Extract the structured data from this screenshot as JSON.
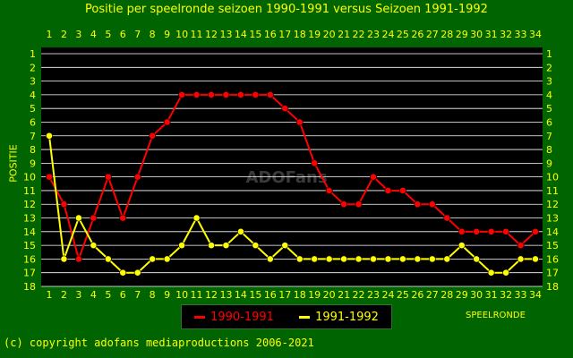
{
  "title": "Positie per speelronde seizoen 1990-1991 versus Seizoen 1991-1992",
  "footer": "(c) copyright adofans mediaproductions 2006-2021",
  "watermark": "ADOFans",
  "colors": {
    "background": "#006400",
    "plot_background": "#000000",
    "text": "#ffff00",
    "grid": "#ffffff",
    "series_1990": "#ff0000",
    "series_1991": "#ffff00"
  },
  "chart_data": {
    "type": "line",
    "title": "Positie per speelronde seizoen 1990-1991 versus Seizoen 1991-1992",
    "xlabel": "SPEELRONDE",
    "ylabel": "POSITIE",
    "x": [
      1,
      2,
      3,
      4,
      5,
      6,
      7,
      8,
      9,
      10,
      11,
      12,
      13,
      14,
      15,
      16,
      17,
      18,
      19,
      20,
      21,
      22,
      23,
      24,
      25,
      26,
      27,
      28,
      29,
      30,
      31,
      32,
      33,
      34
    ],
    "xlim": [
      1,
      34
    ],
    "ylim": [
      1,
      18
    ],
    "y_inverted": true,
    "yticks": [
      1,
      2,
      3,
      4,
      5,
      6,
      7,
      8,
      9,
      10,
      11,
      12,
      13,
      14,
      15,
      16,
      17,
      18
    ],
    "grid": true,
    "legend_position": "bottom-center",
    "series": [
      {
        "name": "1990-1991",
        "color": "#ff0000",
        "values": [
          10,
          12,
          16,
          13,
          10,
          13,
          10,
          7,
          6,
          4,
          4,
          4,
          4,
          4,
          4,
          4,
          5,
          6,
          9,
          11,
          12,
          12,
          10,
          11,
          11,
          12,
          12,
          13,
          14,
          14,
          14,
          14,
          15,
          14
        ]
      },
      {
        "name": "1991-1992",
        "color": "#ffff00",
        "values": [
          7,
          16,
          13,
          15,
          16,
          17,
          17,
          16,
          16,
          15,
          13,
          15,
          15,
          14,
          15,
          16,
          15,
          16,
          16,
          16,
          16,
          16,
          16,
          16,
          16,
          16,
          16,
          16,
          15,
          16,
          17,
          17,
          16,
          16
        ]
      }
    ]
  }
}
